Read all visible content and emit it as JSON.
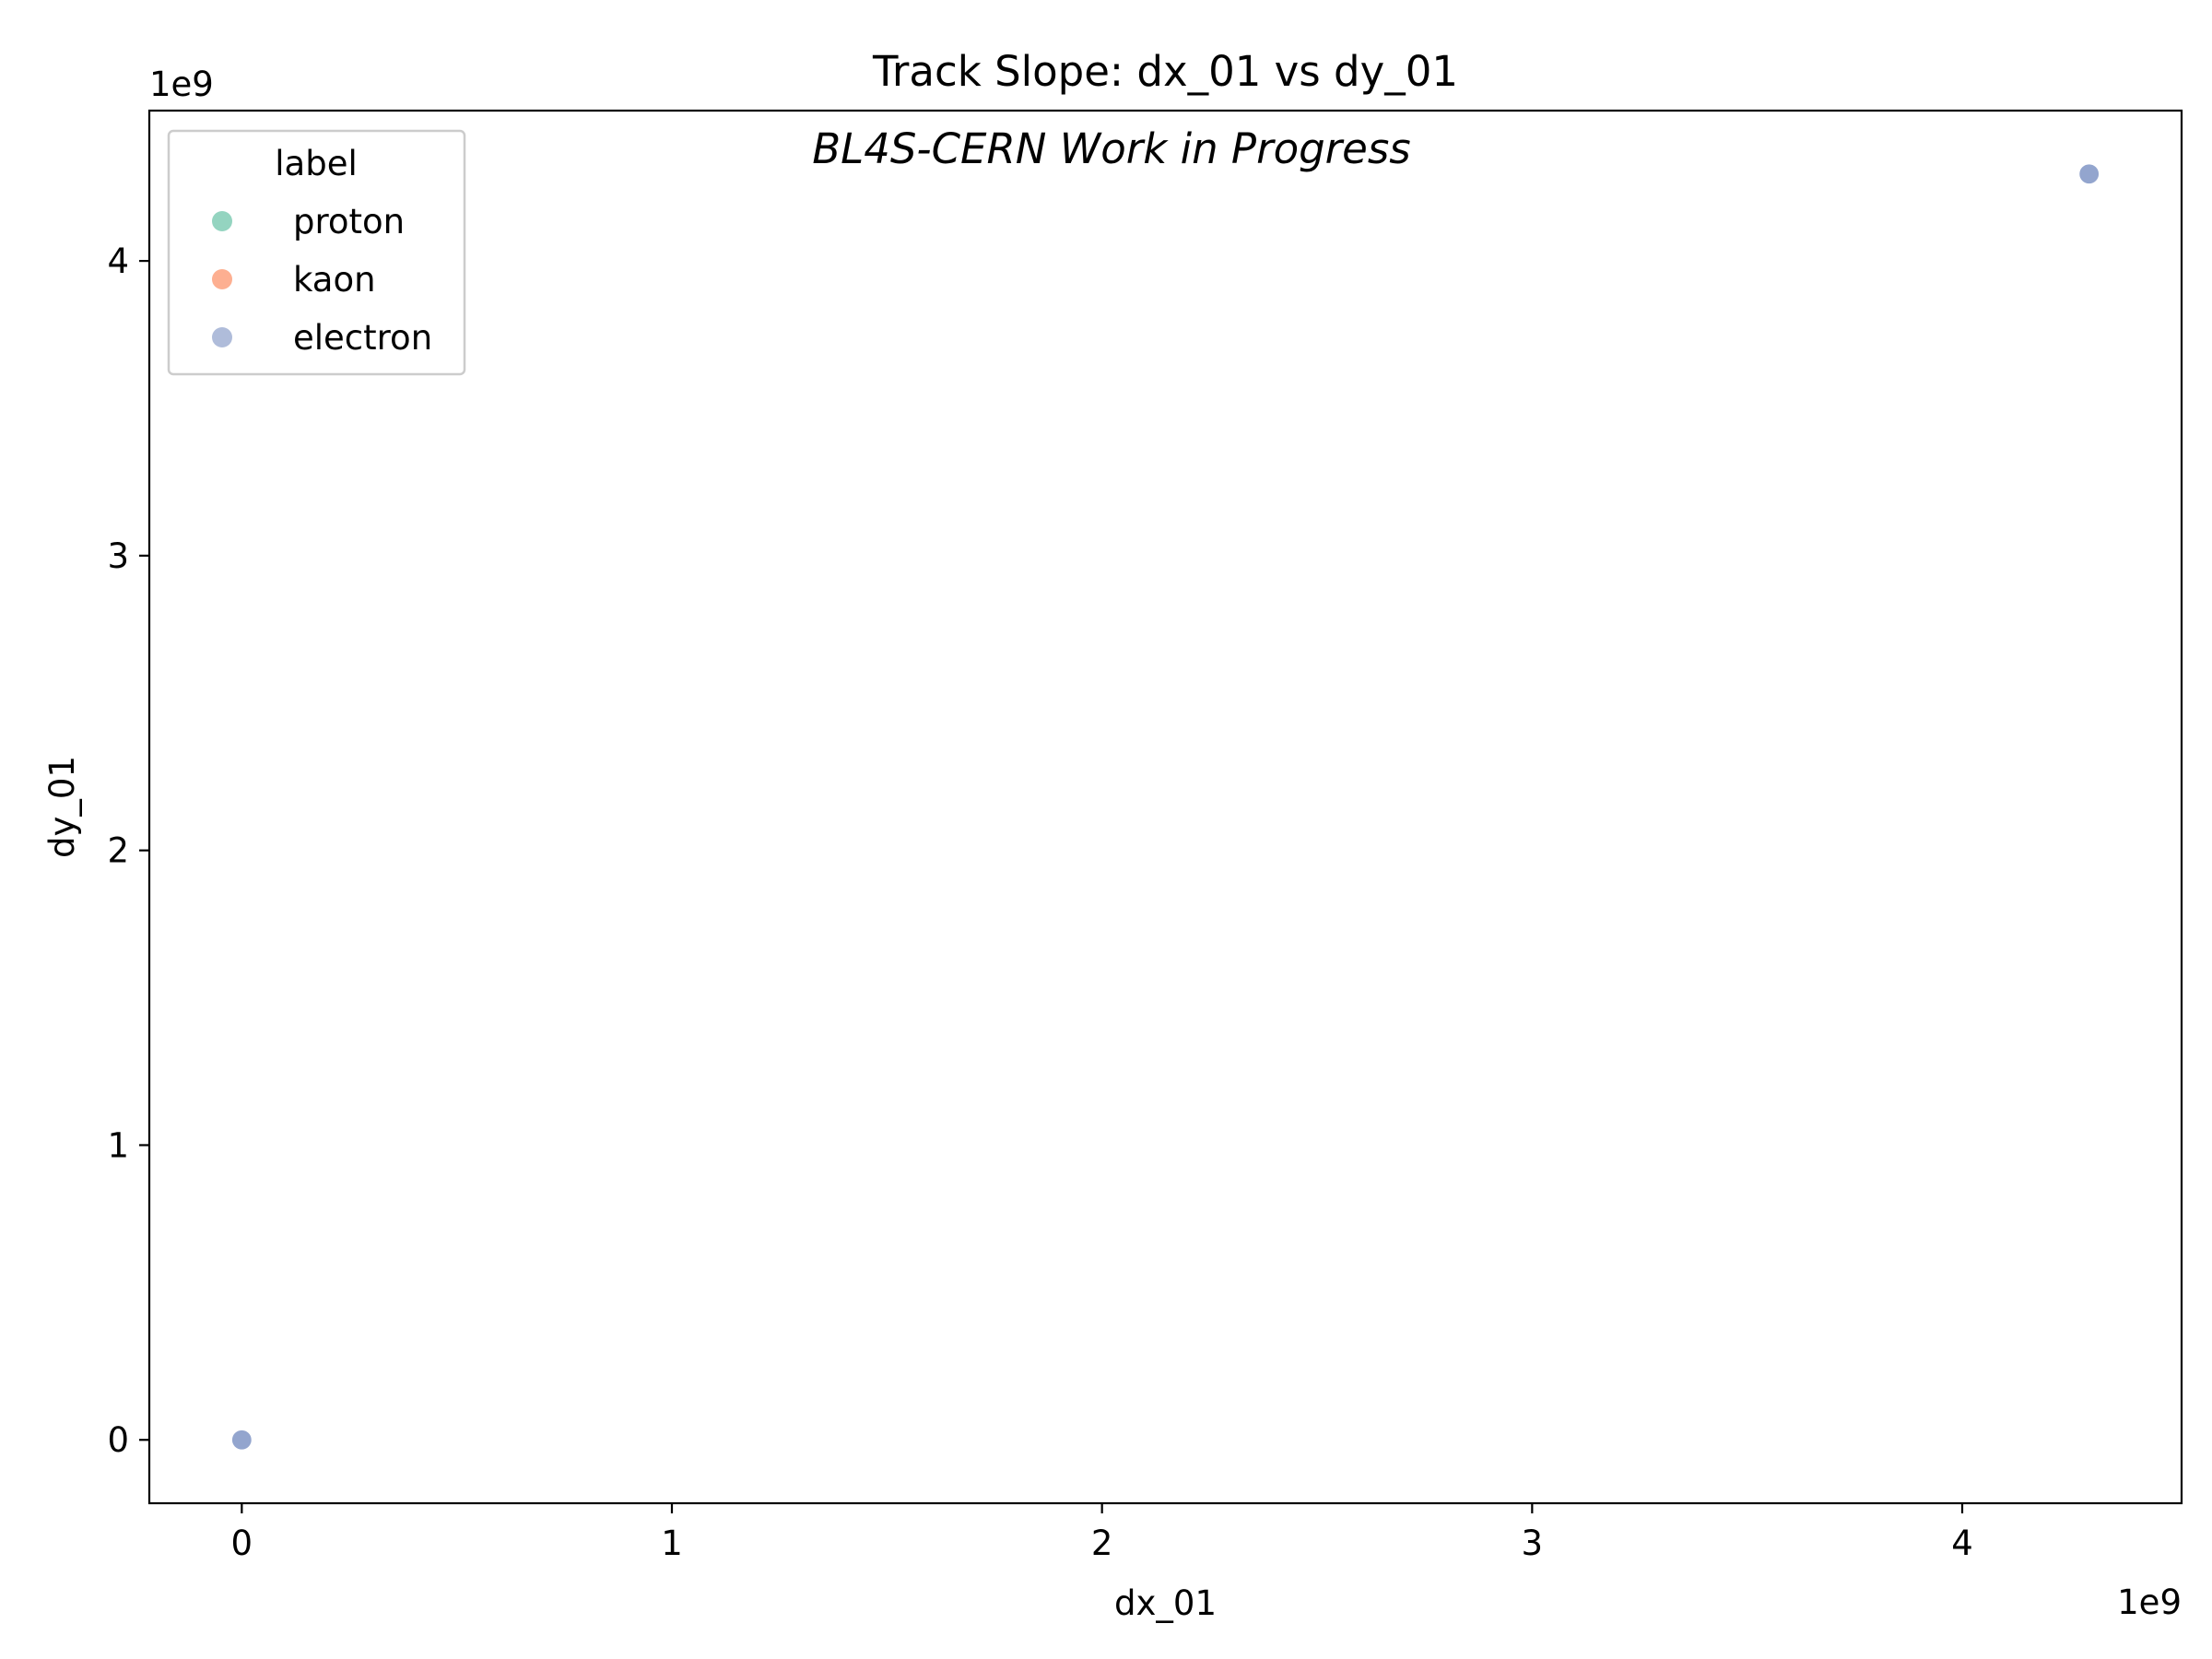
{
  "chart_data": {
    "type": "scatter",
    "title": "Track Slope: dx_01 vs dy_01",
    "annotation": "BL4S-CERN Work in Progress",
    "xlabel": "dx_01",
    "ylabel": "dy_01",
    "x_offset_text": "1e9",
    "y_offset_text": "1e9",
    "xlim": [
      -0.215,
      4.51
    ],
    "ylim": [
      -0.215,
      4.51
    ],
    "x_ticks": [
      0,
      1,
      2,
      3,
      4
    ],
    "y_ticks": [
      0,
      1,
      2,
      3,
      4
    ],
    "x_tick_labels": [
      "0",
      "1",
      "2",
      "3",
      "4"
    ],
    "y_tick_labels": [
      "0",
      "1",
      "2",
      "3",
      "4"
    ],
    "grid": false,
    "legend": {
      "title": "label",
      "placement": "upper-left",
      "entries": [
        {
          "name": "proton",
          "color": "#66c2a5"
        },
        {
          "name": "kaon",
          "color": "#fc8d62"
        },
        {
          "name": "electron",
          "color": "#8da0cb"
        }
      ]
    },
    "series": [
      {
        "name": "proton",
        "color": "#66c2a5",
        "points": []
      },
      {
        "name": "kaon",
        "color": "#fc8d62",
        "points": []
      },
      {
        "name": "electron",
        "color": "#8da0cb",
        "points": [
          {
            "x": 0.0,
            "y": 0.0
          },
          {
            "x": 4.295,
            "y": 4.295
          }
        ]
      }
    ]
  }
}
